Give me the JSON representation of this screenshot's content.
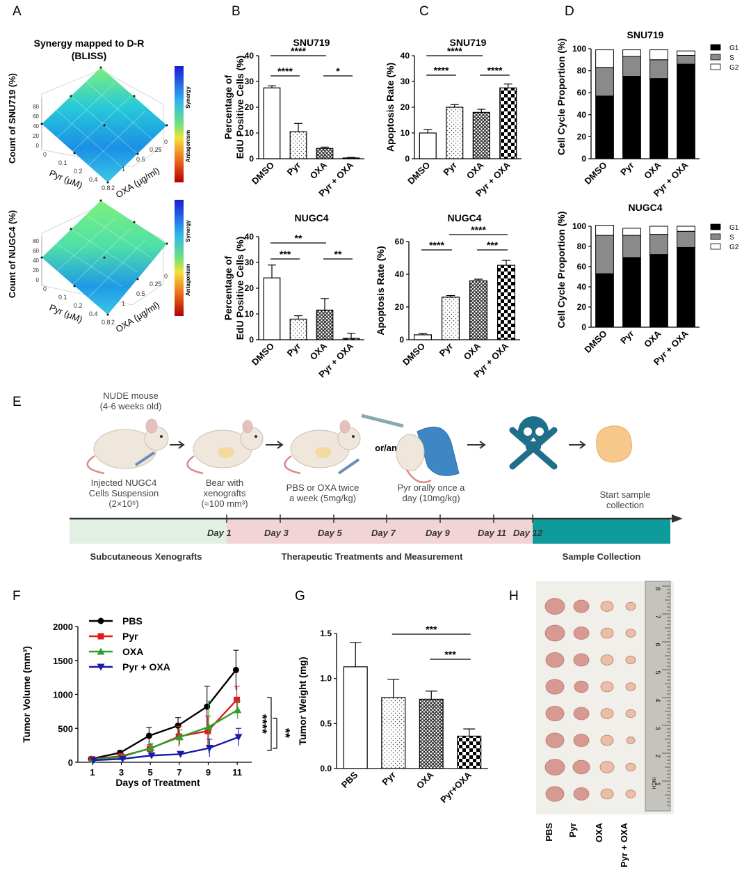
{
  "panels": {
    "A": {
      "label": "A",
      "title_line1": "Synergy mapped to D-R",
      "title_line2": "(BLISS)",
      "colorbar_top": "Synergy",
      "colorbar_bottom": "Antagonism",
      "surfaces": [
        {
          "zlabel": "Count of SNU719 (%)",
          "xlabel": "Pyr (μM)",
          "ylabel": "OXA (μg/ml)",
          "z_ticks": [
            "80",
            "60",
            "40",
            "20",
            "0"
          ],
          "x_ticks": [
            "0",
            "0.1",
            "0.2",
            "0.4",
            "0.8"
          ],
          "y_ticks": [
            "2",
            "1",
            "0.5",
            "0.25",
            "0"
          ]
        },
        {
          "zlabel": "Count of NUGC4 (%)",
          "xlabel": "Pyr (μM)",
          "ylabel": "OXA (μg/ml)",
          "z_ticks": [
            "80",
            "60",
            "40",
            "20",
            "0"
          ],
          "x_ticks": [
            "0",
            "0.1",
            "0.2",
            "0.4",
            "0.8"
          ],
          "y_ticks": [
            "2",
            "1",
            "0.5",
            "0.25",
            "0"
          ]
        }
      ]
    },
    "B": {
      "label": "B"
    },
    "C": {
      "label": "C"
    },
    "D": {
      "label": "D"
    },
    "E": {
      "label": "E",
      "mouse_title": "NUDE mouse",
      "mouse_age": "(4-6 weeks old)",
      "step1": [
        "Injected NUGC4",
        "Cells Suspension",
        "(2×10⁶)"
      ],
      "step2": [
        "Bear with",
        "xenografts",
        "(≈100 mm³)"
      ],
      "step3": [
        "PBS or OXA twice",
        "a week (5mg/kg)"
      ],
      "step4": [
        "Pyr orally once a",
        "day (10mg/kg)"
      ],
      "step5": [
        "Start sample",
        "collection"
      ],
      "or_and": "or/and",
      "days": [
        "Day 1",
        "Day 3",
        "Day 5",
        "Day 7",
        "Day 9",
        "Day 11",
        "Day 12"
      ],
      "phase1": "Subcutaneous Xenografts",
      "phase2": "Therapeutic Treatments and Measurement",
      "phase3": "Sample Collection",
      "colors": {
        "phase1": "#e2efe3",
        "phase2": "#f2d4d6",
        "phase3": "#0f9b9b",
        "skull": "#1f6f8b"
      }
    },
    "F": {
      "label": "F",
      "sig1": "****",
      "sig2": "**"
    },
    "G": {
      "label": "G"
    },
    "H": {
      "label": "H",
      "groups": [
        "PBS",
        "Pyr",
        "OXA",
        "Pyr + OXA"
      ],
      "ruler_marks": [
        "8",
        "7",
        "6",
        "5",
        "4",
        "3",
        "2",
        "1"
      ],
      "ruler_text": "INCH"
    }
  },
  "chart_data": [
    {
      "id": "B1",
      "type": "bar",
      "title": "SNU719",
      "ylabel": "Percentage of EdU Positive Cells (%)",
      "categories": [
        "DMSO",
        "Pyr",
        "OXA",
        "Pyr + OXA"
      ],
      "values": [
        27.5,
        10.5,
        4,
        0.3
      ],
      "errors": [
        0.8,
        3.2,
        0.5,
        0.2
      ],
      "ylim": [
        0,
        40
      ],
      "yticks": [
        0,
        10,
        20,
        30,
        40
      ],
      "sig": [
        {
          "a": 0,
          "b": 1,
          "level": 1,
          "text": "****"
        },
        {
          "a": 0,
          "b": 2,
          "level": 2,
          "text": "****"
        },
        {
          "a": 2,
          "b": 3,
          "level": 1,
          "text": "*"
        }
      ]
    },
    {
      "id": "B2",
      "type": "bar",
      "title": "NUGC4",
      "ylabel": "Percentage of EdU Positive Cells (%)",
      "categories": [
        "DMSO",
        "Pyr",
        "OXA",
        "Pyr + OXA"
      ],
      "values": [
        24,
        8,
        11.5,
        0.5
      ],
      "errors": [
        5,
        1.3,
        4.5,
        2
      ],
      "ylim": [
        0,
        40
      ],
      "yticks": [
        0,
        10,
        20,
        30,
        40
      ],
      "sig": [
        {
          "a": 0,
          "b": 1,
          "level": 1,
          "text": "***"
        },
        {
          "a": 0,
          "b": 2,
          "level": 2,
          "text": "**"
        },
        {
          "a": 2,
          "b": 3,
          "level": 1,
          "text": "**"
        }
      ]
    },
    {
      "id": "C1",
      "type": "bar",
      "title": "SNU719",
      "ylabel": "Apoptosis Rate (%)",
      "categories": [
        "DMSO",
        "Pyr",
        "OXA",
        "Pyr + OXA"
      ],
      "values": [
        10,
        20,
        18,
        27.5
      ],
      "errors": [
        1.3,
        1,
        1.2,
        1.5
      ],
      "ylim": [
        0,
        40
      ],
      "yticks": [
        0,
        10,
        20,
        30,
        40
      ],
      "sig": [
        {
          "a": 0,
          "b": 1,
          "level": 1,
          "text": "****"
        },
        {
          "a": 0,
          "b": 2,
          "level": 2,
          "text": "****"
        },
        {
          "a": 2,
          "b": 3,
          "level": 1,
          "text": "****"
        }
      ]
    },
    {
      "id": "C2",
      "type": "bar",
      "title": "NUGC4",
      "ylabel": "Apoptosis Rate (%)",
      "categories": [
        "DMSO",
        "Pyr",
        "OXA",
        "Pyr + OXA"
      ],
      "values": [
        3,
        26,
        36,
        45.5
      ],
      "errors": [
        0.8,
        1,
        1,
        3
      ],
      "ylim": [
        0,
        60
      ],
      "yticks": [
        0,
        20,
        40,
        60
      ],
      "sig": [
        {
          "a": 0,
          "b": 1,
          "level": 1,
          "text": "****"
        },
        {
          "a": 1,
          "b": 3,
          "level": 2,
          "text": "****"
        },
        {
          "a": 2,
          "b": 3,
          "level": 1,
          "text": "***"
        }
      ]
    },
    {
      "id": "D1",
      "type": "stacked-bar",
      "title": "SNU719",
      "ylabel": "Cell Cycle Proportion (%)",
      "categories": [
        "DMSO",
        "Pyr",
        "OXA",
        "Pyr + OXA"
      ],
      "ylim": [
        0,
        100
      ],
      "yticks": [
        0,
        20,
        40,
        60,
        80,
        100
      ],
      "series": [
        {
          "name": "G1",
          "values": [
            57,
            75,
            73,
            86
          ]
        },
        {
          "name": "S",
          "values": [
            26,
            18,
            17,
            8
          ]
        },
        {
          "name": "G2",
          "values": [
            16,
            6,
            9,
            4
          ]
        }
      ]
    },
    {
      "id": "D2",
      "type": "stacked-bar",
      "title": "NUGC4",
      "ylabel": "Cell Cycle Proportion (%)",
      "categories": [
        "DMSO",
        "Pyr",
        "OXA",
        "Pyr + OXA"
      ],
      "ylim": [
        0,
        100
      ],
      "yticks": [
        0,
        20,
        40,
        60,
        80,
        100
      ],
      "series": [
        {
          "name": "G1",
          "values": [
            53,
            69,
            72,
            79
          ]
        },
        {
          "name": "S",
          "values": [
            38,
            22,
            20,
            16
          ]
        },
        {
          "name": "G2",
          "values": [
            10,
            7,
            8,
            5
          ]
        }
      ]
    },
    {
      "id": "F",
      "type": "line",
      "ylabel": "Tumor Volume (mm³)",
      "xlabel": "Days of Treatment",
      "x": [
        1,
        3,
        5,
        7,
        9,
        11
      ],
      "xlim": [
        0,
        12
      ],
      "ylim": [
        0,
        2000
      ],
      "yticks": [
        0,
        500,
        1000,
        1500,
        2000
      ],
      "series": [
        {
          "name": "PBS",
          "color": "#000000",
          "values": [
            50,
            140,
            390,
            540,
            820,
            1360
          ],
          "errors": [
            20,
            30,
            120,
            120,
            300,
            290
          ]
        },
        {
          "name": "Pyr",
          "color": "#e31a1c",
          "values": [
            45,
            90,
            200,
            380,
            460,
            920
          ],
          "errors": [
            15,
            20,
            60,
            150,
            220,
            200
          ]
        },
        {
          "name": "OXA",
          "color": "#2ca02c",
          "values": [
            40,
            80,
            210,
            370,
            520,
            770
          ],
          "errors": [
            15,
            20,
            70,
            110,
            380,
            130
          ]
        },
        {
          "name": "Pyr + OXA",
          "color": "#1a1aa8",
          "values": [
            30,
            50,
            100,
            120,
            210,
            370
          ],
          "errors": [
            10,
            15,
            40,
            40,
            130,
            130
          ]
        }
      ]
    },
    {
      "id": "G",
      "type": "bar",
      "ylabel": "Tumor Weight (mg)",
      "categories": [
        "PBS",
        "Pyr",
        "OXA",
        "Pyr+OXA"
      ],
      "values": [
        1.13,
        0.79,
        0.77,
        0.36
      ],
      "errors": [
        0.27,
        0.2,
        0.09,
        0.08
      ],
      "ylim": [
        0,
        1.5
      ],
      "yticks": [
        "0.0",
        "0.5",
        "1.0",
        "1.5"
      ],
      "sig": [
        {
          "a": 1,
          "b": 3,
          "level": 2,
          "text": "***"
        },
        {
          "a": 2,
          "b": 3,
          "level": 1,
          "text": "***"
        }
      ]
    }
  ]
}
